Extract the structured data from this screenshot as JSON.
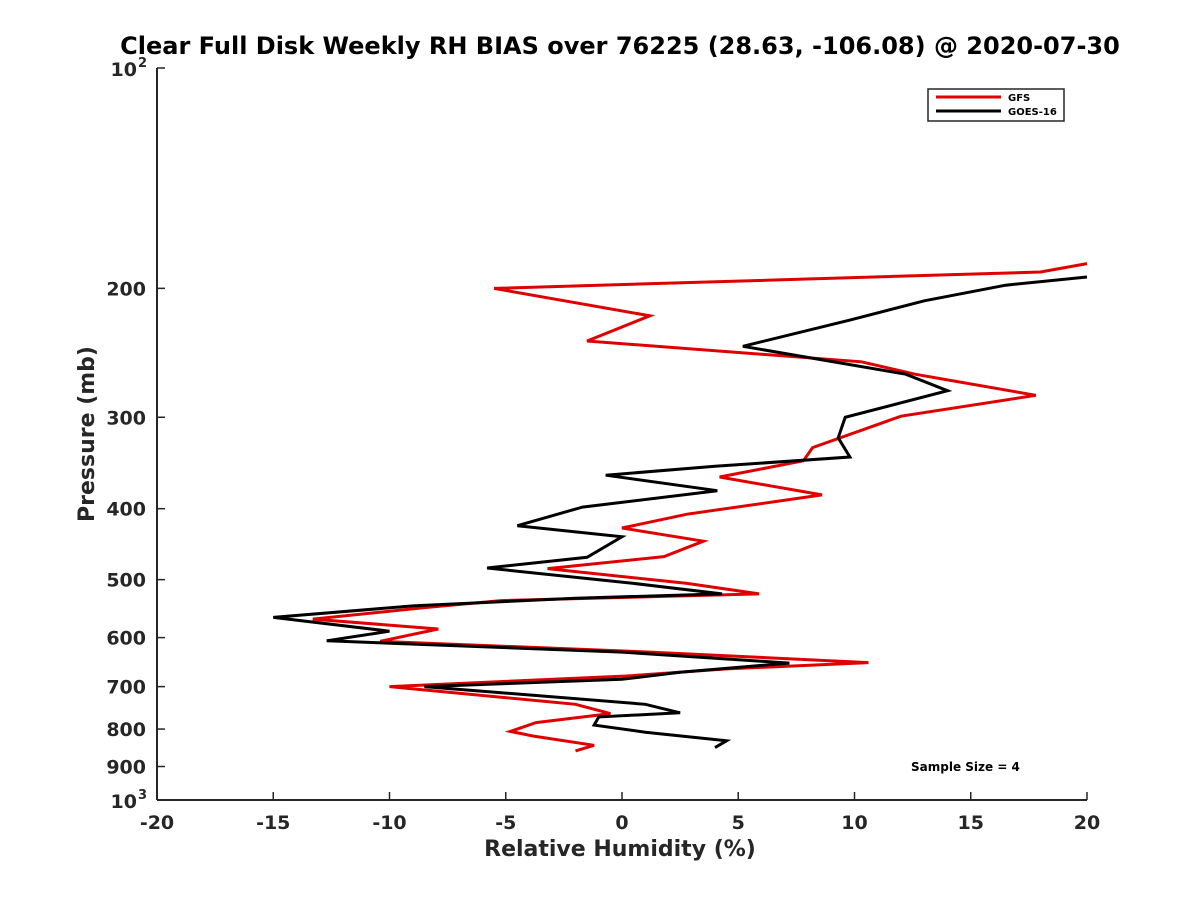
{
  "chart_data": {
    "type": "line",
    "title": "Clear Full Disk Weekly RH BIAS over 76225 (28.63, -106.08) @ 2020-07-30",
    "xlabel": "Relative Humidity (%)",
    "ylabel": "Pressure (mb)",
    "xlim": [
      -20,
      20
    ],
    "ylim": [
      100,
      1000
    ],
    "y_scale": "log",
    "y_reversed": true,
    "grid": false,
    "legend_position": "top-right",
    "x_ticks": [
      -20,
      -15,
      -10,
      -5,
      0,
      5,
      10,
      15,
      20
    ],
    "x_tick_labels": [
      "-20",
      "-15",
      "-10",
      "-5",
      "0",
      "5",
      "10",
      "15",
      "20"
    ],
    "y_ticks": [
      100,
      200,
      300,
      400,
      500,
      600,
      700,
      800,
      900,
      1000
    ],
    "y_tick_labels": [
      {
        "base": "10",
        "exp": "2"
      },
      {
        "base": "200",
        "exp": ""
      },
      {
        "base": "300",
        "exp": ""
      },
      {
        "base": "400",
        "exp": ""
      },
      {
        "base": "500",
        "exp": ""
      },
      {
        "base": "600",
        "exp": ""
      },
      {
        "base": "700",
        "exp": ""
      },
      {
        "base": "800",
        "exp": ""
      },
      {
        "base": "900",
        "exp": ""
      },
      {
        "base": "10",
        "exp": "3"
      }
    ],
    "annotation": "Sample Size = 4",
    "series": [
      {
        "name": "GFS",
        "color": "#e00000",
        "points": [
          [
            20.0,
            185
          ],
          [
            18.0,
            190
          ],
          [
            -5.5,
            200
          ],
          [
            1.2,
            218
          ],
          [
            -1.5,
            236
          ],
          [
            10.3,
            252
          ],
          [
            12.6,
            262
          ],
          [
            17.8,
            280
          ],
          [
            12.0,
            299
          ],
          [
            8.2,
            330
          ],
          [
            7.8,
            344
          ],
          [
            4.2,
            362
          ],
          [
            8.6,
            383
          ],
          [
            2.8,
            407
          ],
          [
            0.0,
            425
          ],
          [
            3.5,
            443
          ],
          [
            1.8,
            465
          ],
          [
            -3.2,
            483
          ],
          [
            2.8,
            506
          ],
          [
            5.9,
            523
          ],
          [
            -5.2,
            534
          ],
          [
            -8.5,
            546
          ],
          [
            -13.3,
            566
          ],
          [
            -7.9,
            584
          ],
          [
            -10.4,
            607
          ],
          [
            1.2,
            628
          ],
          [
            10.6,
            649
          ],
          [
            4.5,
            662
          ],
          [
            0.2,
            677
          ],
          [
            -10.0,
            700
          ],
          [
            -2.0,
            740
          ],
          [
            -0.5,
            762
          ],
          [
            -3.7,
            784
          ],
          [
            -4.8,
            806
          ],
          [
            -3.8,
            818
          ],
          [
            -1.2,
            842
          ],
          [
            -2.0,
            857
          ]
        ]
      },
      {
        "name": "GOES-16",
        "color": "#000000",
        "points": [
          [
            20.0,
            193
          ],
          [
            16.5,
            198
          ],
          [
            13.0,
            208
          ],
          [
            9.8,
            221
          ],
          [
            5.2,
            240
          ],
          [
            12.2,
            262
          ],
          [
            14.0,
            276
          ],
          [
            9.6,
            300
          ],
          [
            9.3,
            320
          ],
          [
            9.8,
            340
          ],
          [
            4.0,
            350
          ],
          [
            -0.7,
            360
          ],
          [
            4.1,
            378
          ],
          [
            -1.7,
            398
          ],
          [
            -4.5,
            422
          ],
          [
            0.0,
            437
          ],
          [
            -1.5,
            466
          ],
          [
            -5.8,
            482
          ],
          [
            0.5,
            506
          ],
          [
            4.3,
            523
          ],
          [
            -2.0,
            530
          ],
          [
            -9.0,
            543
          ],
          [
            -15.0,
            563
          ],
          [
            -10.0,
            588
          ],
          [
            -12.7,
            606
          ],
          [
            0.0,
            628
          ],
          [
            7.2,
            650
          ],
          [
            2.5,
            669
          ],
          [
            0.0,
            684
          ],
          [
            -8.5,
            700
          ],
          [
            1.0,
            740
          ],
          [
            2.5,
            760
          ],
          [
            -1.0,
            770
          ],
          [
            -1.2,
            790
          ],
          [
            1.0,
            808
          ],
          [
            4.5,
            830
          ],
          [
            4.0,
            848
          ]
        ]
      }
    ]
  }
}
